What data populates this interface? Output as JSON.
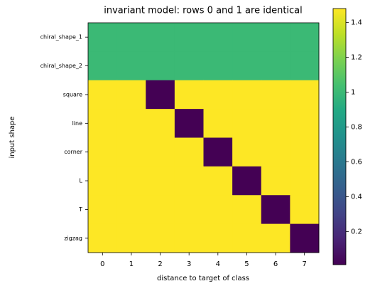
{
  "chart_data": {
    "type": "heatmap",
    "title": "invariant model: rows 0 and 1 are identical",
    "xlabel": "distance to target of class",
    "ylabel": "input shape",
    "categories": [
      0,
      1,
      2,
      3,
      4,
      5,
      6,
      7
    ],
    "rows": [
      "chiral_shape_1",
      "chiral_shape_2",
      "square",
      "line",
      "corner",
      "L",
      "T",
      "zigzag"
    ],
    "values": [
      [
        1.0,
        1.0,
        1.0,
        1.0,
        1.0,
        1.0,
        1.0,
        1.0
      ],
      [
        1.0,
        1.0,
        1.0,
        1.0,
        1.0,
        1.0,
        1.0,
        1.0
      ],
      [
        1.48,
        1.48,
        0.01,
        1.48,
        1.48,
        1.48,
        1.48,
        1.48
      ],
      [
        1.48,
        1.48,
        1.48,
        0.01,
        1.48,
        1.48,
        1.48,
        1.48
      ],
      [
        1.48,
        1.48,
        1.48,
        1.48,
        0.01,
        1.48,
        1.48,
        1.48
      ],
      [
        1.48,
        1.48,
        1.48,
        1.48,
        1.48,
        0.01,
        1.48,
        1.48
      ],
      [
        1.48,
        1.48,
        1.48,
        1.48,
        1.48,
        1.48,
        0.01,
        1.48
      ],
      [
        1.48,
        1.48,
        1.48,
        1.48,
        1.48,
        1.48,
        1.48,
        0.01
      ]
    ],
    "colormap": "viridis",
    "clim": [
      0.01,
      1.48
    ],
    "cticks": [
      0.2,
      0.4,
      0.6,
      0.8,
      1.0,
      1.2,
      1.4
    ]
  }
}
